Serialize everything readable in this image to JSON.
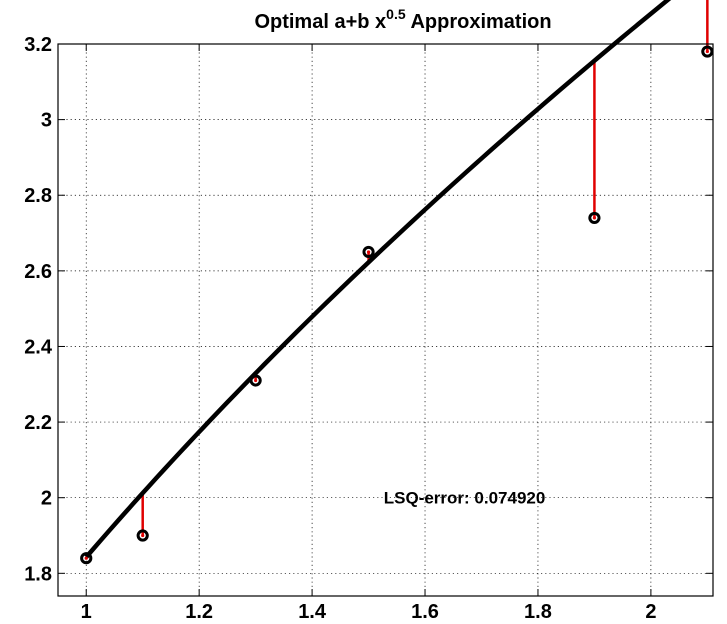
{
  "chart_data": {
    "type": "line",
    "title": {
      "main": "Optimal a+b x",
      "superscript": "0.5",
      "tail": " Approximation"
    },
    "xlabel": "",
    "ylabel": "",
    "xlim": [
      0.95,
      2.11
    ],
    "ylim": [
      1.74,
      3.2
    ],
    "grid": true,
    "x_ticks": [
      {
        "value": 1,
        "label": "1"
      },
      {
        "value": 1.2,
        "label": "1.2"
      },
      {
        "value": 1.4,
        "label": "1.4"
      },
      {
        "value": 1.6,
        "label": "1.6"
      },
      {
        "value": 1.8,
        "label": "1.8"
      },
      {
        "value": 2,
        "label": "2"
      }
    ],
    "y_ticks": [
      {
        "value": 1.8,
        "label": "1.8"
      },
      {
        "value": 2.0,
        "label": "2"
      },
      {
        "value": 2.2,
        "label": "2.2"
      },
      {
        "value": 2.4,
        "label": "2.4"
      },
      {
        "value": 2.6,
        "label": "2.6"
      },
      {
        "value": 2.8,
        "label": "2.8"
      },
      {
        "value": 3.0,
        "label": "3"
      },
      {
        "value": 3.2,
        "label": "3.2"
      }
    ],
    "data_points": [
      {
        "x": 1.0,
        "y": 1.84
      },
      {
        "x": 1.1,
        "y": 1.9
      },
      {
        "x": 1.3,
        "y": 2.31
      },
      {
        "x": 1.5,
        "y": 2.65
      },
      {
        "x": 1.9,
        "y": 2.74
      },
      {
        "x": 2.1,
        "y": 3.18
      }
    ],
    "fit": {
      "model": "a+b*x^0.5",
      "a": -1.6268,
      "b": 3.4697,
      "x_start": 1.0,
      "x_end": 2.1
    },
    "annotation": "LSQ-error: 0.074920",
    "colors": {
      "fit_line": "#000000",
      "residual": "#e00000",
      "marker_ring": "#000000",
      "marker_center": "#e00000",
      "axes": "#000000",
      "background": "#ffffff"
    }
  }
}
